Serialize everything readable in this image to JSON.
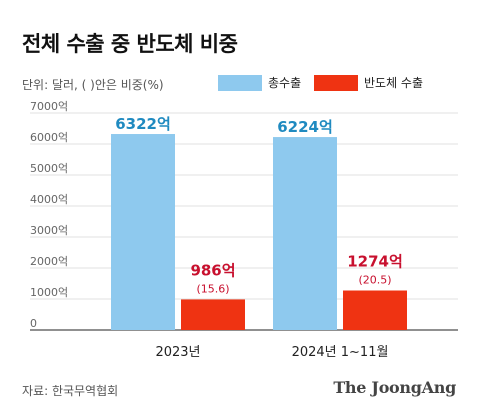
{
  "title": "전체 수출 중 반도체 비중",
  "unit_note": "단위: 달러, ( )안은 비중(%)",
  "legend": [
    {
      "label": "총수출",
      "color": "#8ec9ee"
    },
    {
      "label": "반도체 수출",
      "color": "#ef3312"
    }
  ],
  "source": "자료: 한국무역협회",
  "brand": "The JoongAng",
  "chart_data": {
    "type": "bar",
    "categories": [
      "2023년",
      "2024년 1~11월"
    ],
    "ylim": [
      0,
      7000
    ],
    "yticks": [
      0,
      1000,
      2000,
      3000,
      4000,
      5000,
      6000,
      7000
    ],
    "ytick_labels": [
      "0",
      "1000억",
      "2000억",
      "3000억",
      "4000억",
      "5000억",
      "6000억",
      "7000억"
    ],
    "grid": true,
    "series": [
      {
        "name": "총수출",
        "color": "#8ec9ee",
        "label_color": "#1f8ac0",
        "values": [
          6322,
          6224
        ],
        "value_labels": [
          "6322억",
          "6224억"
        ]
      },
      {
        "name": "반도체 수출",
        "color": "#ef3312",
        "label_color": "#c8102e",
        "values": [
          986,
          1274
        ],
        "value_labels": [
          "986억",
          "1274억"
        ],
        "share_labels": [
          "(15.6)",
          "(20.5)"
        ]
      }
    ]
  }
}
